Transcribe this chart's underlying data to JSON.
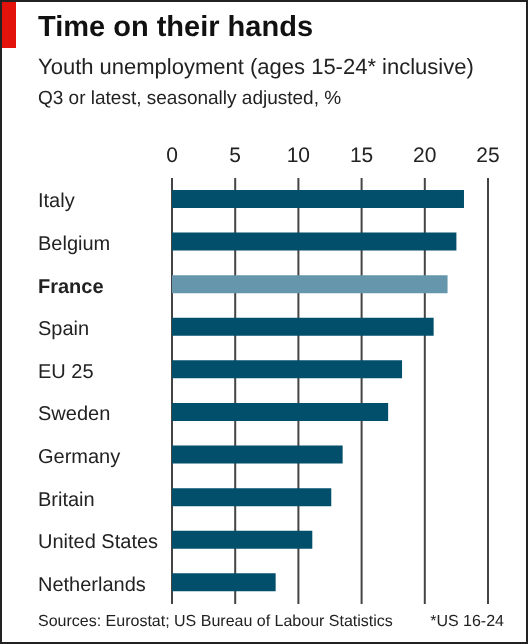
{
  "chart_data": {
    "type": "bar",
    "orientation": "horizontal",
    "title": "Time on their hands",
    "subtitle": "Youth unemployment (ages 15-24* inclusive)\nQ3 or latest, seasonally adjusted, %",
    "categories": [
      "Italy",
      "Belgium",
      "France",
      "Spain",
      "EU 25",
      "Sweden",
      "Germany",
      "Britain",
      "United States",
      "Netherlands"
    ],
    "values": [
      23.1,
      22.5,
      21.8,
      20.7,
      18.2,
      17.1,
      13.5,
      12.6,
      11.1,
      8.2
    ],
    "colors": [
      "#024f6b",
      "#024f6b",
      "#6596ab",
      "#024f6b",
      "#024f6b",
      "#024f6b",
      "#024f6b",
      "#024f6b",
      "#024f6b",
      "#024f6b"
    ],
    "xlim": [
      0,
      25
    ],
    "xticks": [
      0,
      5,
      10,
      15,
      20,
      25
    ],
    "grid": "x",
    "annotations": [
      "Sources: Eurostat; US Bureau of Labour Statistics",
      "*US 16-24"
    ]
  }
}
